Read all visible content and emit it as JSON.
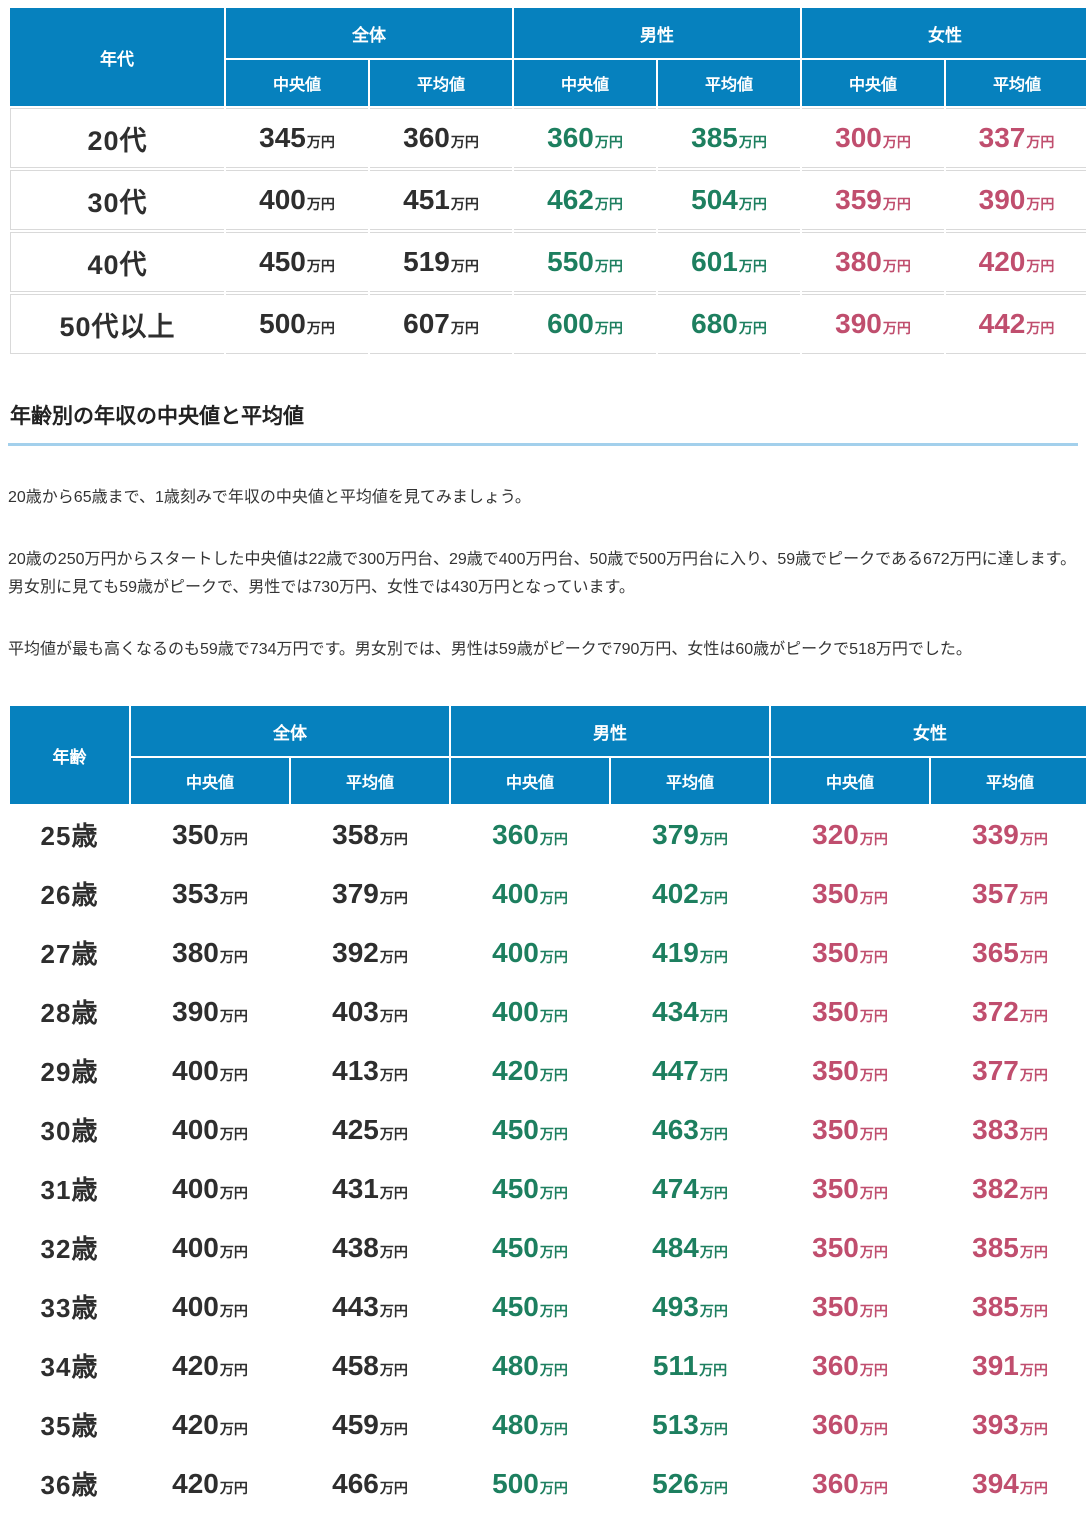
{
  "unit": "万円",
  "colors": {
    "header_bg": "#0681be",
    "overall_value": "#2e2e2e",
    "male_value": "#1d7f5f",
    "female_value": "#c04e6e",
    "heading_underline": "#a3d0ec",
    "row_border": "#d9d9d9"
  },
  "heading": "年齢別の年収の中央値と平均値",
  "paragraphs": [
    "20歳から65歳まで、1歳刻みで年収の中央値と平均値を見てみましょう。",
    "20歳の250万円からスタートした中央値は22歳で300万円台、29歳で400万円台、50歳で500万円台に入り、59歳でピークである672万円に達します。男女別に見ても59歳がピークで、男性では730万円、女性では430万円となっています。",
    "平均値が最も高くなるのも59歳で734万円です。男女別では、男性は59歳がピークで790万円、女性は60歳がピークで518万円でした。"
  ],
  "table1": {
    "header": {
      "row_label": "年代",
      "groups": [
        "全体",
        "男性",
        "女性"
      ],
      "subcols": [
        "中央値",
        "平均値"
      ]
    },
    "rows": [
      {
        "label": "20代",
        "values": [
          "345",
          "360",
          "360",
          "385",
          "300",
          "337"
        ]
      },
      {
        "label": "30代",
        "values": [
          "400",
          "451",
          "462",
          "504",
          "359",
          "390"
        ]
      },
      {
        "label": "40代",
        "values": [
          "450",
          "519",
          "550",
          "601",
          "380",
          "420"
        ]
      },
      {
        "label": "50代以上",
        "values": [
          "500",
          "607",
          "600",
          "680",
          "390",
          "442"
        ]
      }
    ]
  },
  "table2": {
    "header": {
      "row_label": "年齢",
      "groups": [
        "全体",
        "男性",
        "女性"
      ],
      "subcols": [
        "中央値",
        "平均値"
      ]
    },
    "rows": [
      {
        "label": "25歳",
        "values": [
          "350",
          "358",
          "360",
          "379",
          "320",
          "339"
        ]
      },
      {
        "label": "26歳",
        "values": [
          "353",
          "379",
          "400",
          "402",
          "350",
          "357"
        ]
      },
      {
        "label": "27歳",
        "values": [
          "380",
          "392",
          "400",
          "419",
          "350",
          "365"
        ]
      },
      {
        "label": "28歳",
        "values": [
          "390",
          "403",
          "400",
          "434",
          "350",
          "372"
        ]
      },
      {
        "label": "29歳",
        "values": [
          "400",
          "413",
          "420",
          "447",
          "350",
          "377"
        ]
      },
      {
        "label": "30歳",
        "values": [
          "400",
          "425",
          "450",
          "463",
          "350",
          "383"
        ]
      },
      {
        "label": "31歳",
        "values": [
          "400",
          "431",
          "450",
          "474",
          "350",
          "382"
        ]
      },
      {
        "label": "32歳",
        "values": [
          "400",
          "438",
          "450",
          "484",
          "350",
          "385"
        ]
      },
      {
        "label": "33歳",
        "values": [
          "400",
          "443",
          "450",
          "493",
          "350",
          "385"
        ]
      },
      {
        "label": "34歳",
        "values": [
          "420",
          "458",
          "480",
          "511",
          "360",
          "391"
        ]
      },
      {
        "label": "35歳",
        "values": [
          "420",
          "459",
          "480",
          "513",
          "360",
          "393"
        ]
      },
      {
        "label": "36歳",
        "values": [
          "420",
          "466",
          "500",
          "526",
          "360",
          "394"
        ]
      }
    ]
  }
}
